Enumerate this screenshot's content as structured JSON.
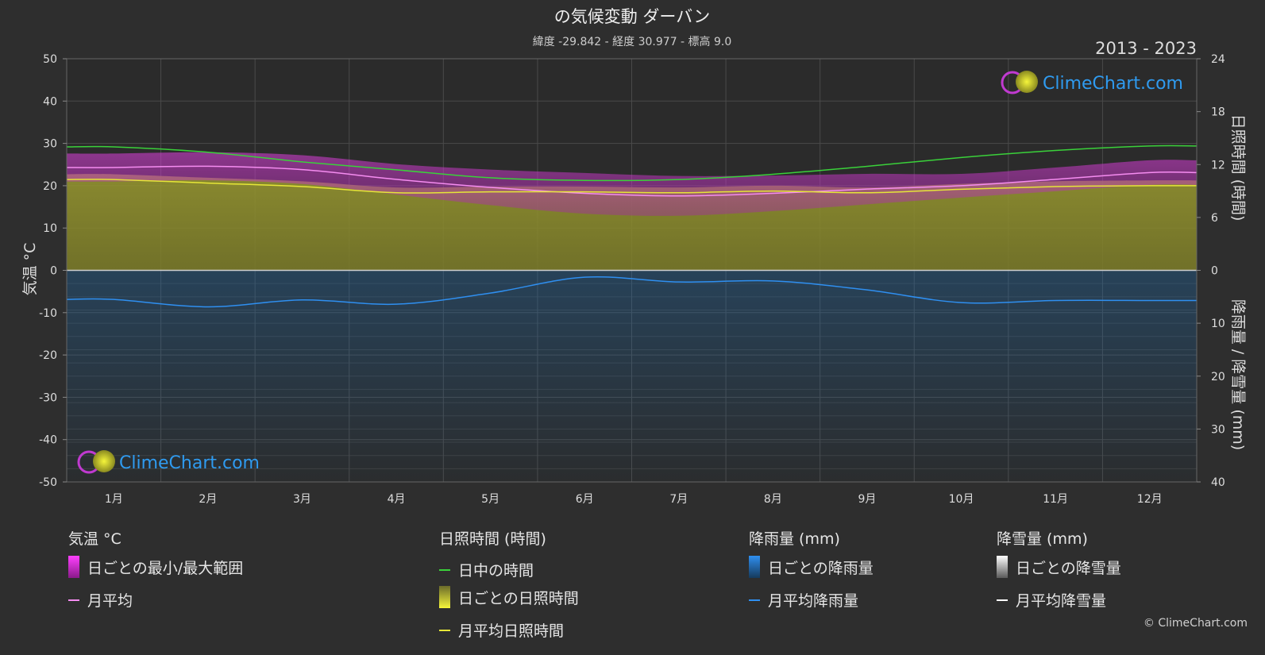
{
  "title": "の気候変動 ダーバン",
  "subtitle": "緯度 -29.842 - 経度 30.977 - 標高 9.0",
  "year_range": "2013 - 2023",
  "watermark": "ClimeChart.com",
  "copyright": "© ClimeChart.com",
  "colors": {
    "background": "#2e2e2e",
    "daylight": "#3ad13a",
    "temp_band": "#cc2fc8",
    "temp_avg": "#f58cf0",
    "sunshine_band": "#8a8a2a",
    "sunshine_avg": "#e6e638",
    "rain_band": "#1f6fb3",
    "rain_avg": "#2f8ff0",
    "snow_avg": "#ffffff"
  },
  "chart_data": {
    "type": "area",
    "months": [
      "1月",
      "2月",
      "3月",
      "4月",
      "5月",
      "6月",
      "7月",
      "8月",
      "9月",
      "10月",
      "11月",
      "12月"
    ],
    "left_axis": {
      "label": "気温 °C",
      "ticks": [
        "50",
        "40",
        "30",
        "20",
        "10",
        "0",
        "-10",
        "-20",
        "-30",
        "-40",
        "-50"
      ],
      "range": [
        -50,
        50
      ]
    },
    "right_axis_top": {
      "label": "日照時間 (時間)",
      "ticks": [
        "24",
        "18",
        "12",
        "6",
        "0"
      ],
      "range": [
        0,
        24
      ]
    },
    "right_axis_bottom": {
      "label": "降雨量 / 降雪量 (mm)",
      "ticks": [
        "10",
        "20",
        "30",
        "40"
      ],
      "range": [
        0,
        40
      ]
    },
    "series": [
      {
        "name": "日中の時間",
        "unit": "hours",
        "values": [
          14.0,
          13.4,
          12.3,
          11.4,
          10.5,
          10.2,
          10.3,
          10.9,
          11.8,
          12.8,
          13.6,
          14.1
        ]
      },
      {
        "name": "月平均",
        "unit": "°C",
        "values": [
          24.3,
          24.6,
          23.8,
          21.5,
          19.6,
          18.2,
          17.6,
          18.2,
          19.2,
          20.0,
          21.5,
          23.1
        ]
      },
      {
        "name": "日ごとの最小/最大範囲",
        "unit": "°C",
        "min": [
          21.0,
          21.3,
          20.4,
          17.9,
          15.4,
          13.4,
          12.9,
          14.0,
          15.6,
          17.2,
          18.7,
          20.2
        ],
        "max": [
          27.6,
          27.9,
          27.2,
          25.1,
          23.8,
          23.0,
          22.3,
          22.4,
          22.8,
          22.8,
          24.3,
          26.0
        ]
      },
      {
        "name": "月平均日照時間",
        "unit": "hours",
        "values": [
          10.3,
          9.9,
          9.5,
          8.8,
          8.9,
          8.9,
          8.8,
          9.0,
          8.8,
          9.2,
          9.5,
          9.6
        ]
      },
      {
        "name": "月平均降雨量",
        "unit": "mm",
        "values": [
          5.5,
          6.9,
          5.6,
          6.4,
          4.3,
          1.3,
          2.2,
          2.0,
          3.7,
          6.1,
          5.7,
          5.7
        ]
      },
      {
        "name": "月平均降雪量",
        "unit": "mm",
        "values": [
          0,
          0,
          0,
          0,
          0,
          0,
          0,
          0,
          0,
          0,
          0,
          0
        ]
      }
    ]
  },
  "legend": {
    "temp": {
      "title": "気温 °C",
      "range": "日ごとの最小/最大範囲",
      "avg": "月平均"
    },
    "sun": {
      "title": "日照時間 (時間)",
      "daylight": "日中の時間",
      "daily": "日ごとの日照時間",
      "avg": "月平均日照時間"
    },
    "rain": {
      "title": "降雨量 (mm)",
      "daily": "日ごとの降雨量",
      "avg": "月平均降雨量"
    },
    "snow": {
      "title": "降雪量 (mm)",
      "daily": "日ごとの降雪量",
      "avg": "月平均降雪量"
    }
  }
}
